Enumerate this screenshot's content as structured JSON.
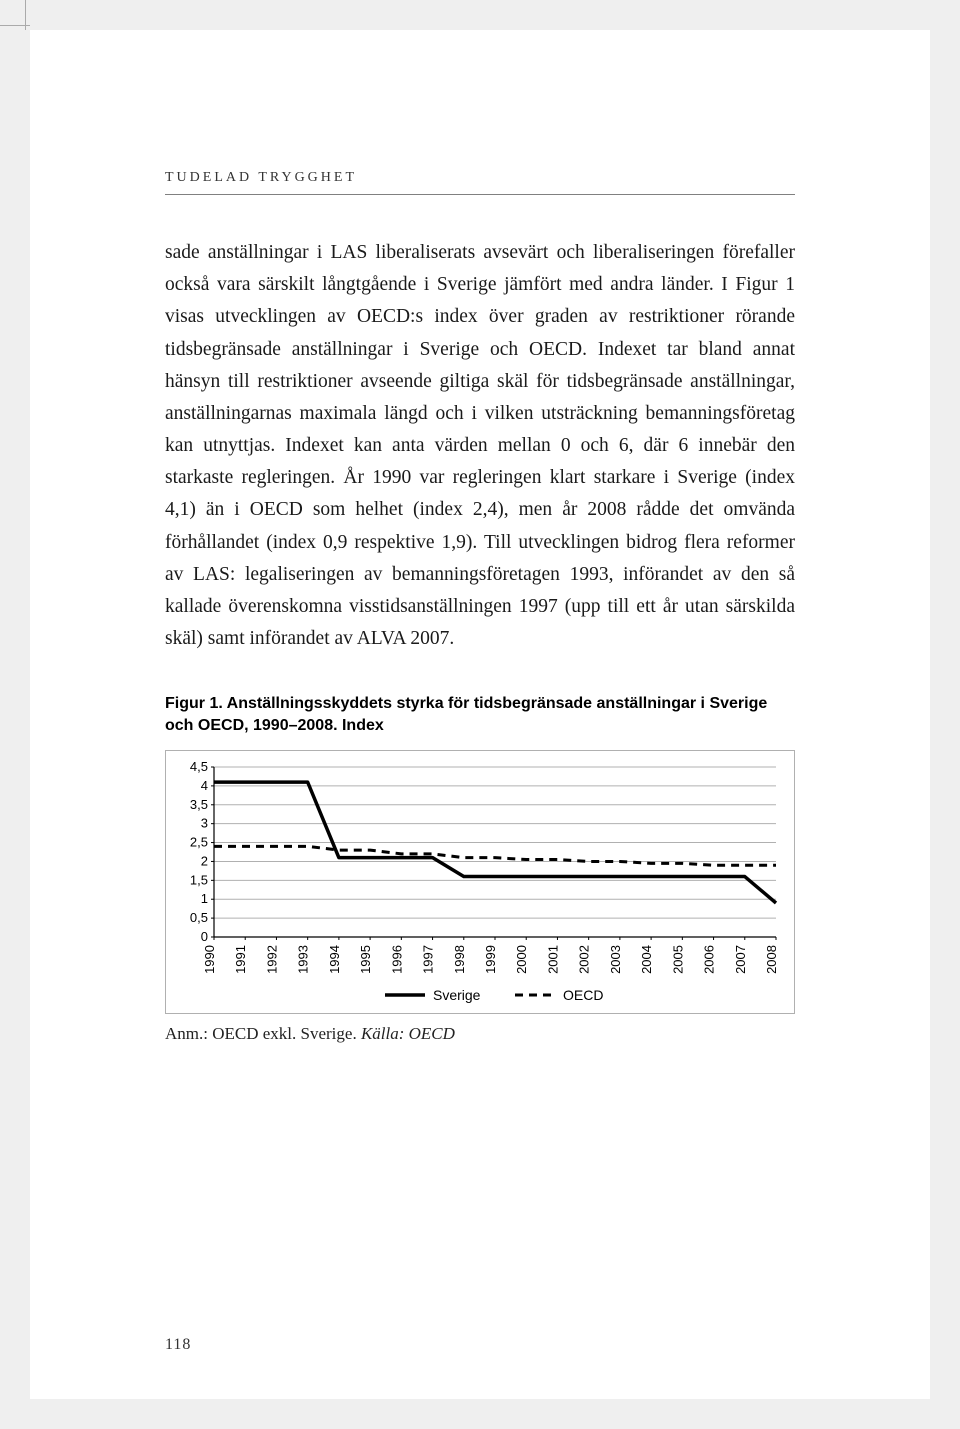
{
  "page": {
    "running_head": "tudelad trygghet",
    "page_number": "118"
  },
  "body_text": "sade anställningar i LAS liberaliserats avsevärt och liberaliseringen förefaller också vara särskilt långtgående i Sverige jämfört med andra länder. I Figur 1 visas utvecklingen av OECD:s index över graden av restriktioner rörande tidsbegränsade anställningar i Sverige och OECD. Indexet tar bland annat hänsyn till restriktioner avseende giltiga skäl för tidsbegränsade anställningar, anställningarnas maximala längd och i vilken utsträckning bemanningsföretag kan utnyttjas. Indexet kan anta värden mellan 0 och 6, där 6 innebär den starkaste regleringen. År 1990 var regleringen klart starkare i Sverige (index 4,1) än i OECD som helhet (index 2,4), men år 2008 rådde det omvända förhållandet (index 0,9 respektive 1,9). Till utvecklingen bidrog flera reformer av LAS: legaliseringen av bemanningsföretagen 1993, införandet av den så kallade överenskomna visstidsanställningen 1997 (upp till ett år utan särskilda skäl) samt införandet av ALVA 2007.",
  "figure": {
    "title": "Figur 1. Anställningsskyddets styrka för tidsbegränsade anställningar i Sverige och OECD, 1990–2008. Index",
    "caption_prefix": "Anm.: OECD exkl. Sverige. ",
    "caption_source": "Källa: OECD",
    "chart": {
      "type": "line",
      "background_color": "#ffffff",
      "grid_color": "#b0b0b0",
      "axis_color": "#000000",
      "font_family": "Arial, Helvetica, sans-serif",
      "tick_fontsize": 13,
      "legend_fontsize": 14,
      "ylim": [
        0,
        4.5
      ],
      "ytick_step": 0.5,
      "yticks": [
        "0",
        "0,5",
        "1",
        "1,5",
        "2",
        "2,5",
        "3",
        "3,5",
        "4",
        "4,5"
      ],
      "xlabels": [
        "1990",
        "1991",
        "1992",
        "1993",
        "1994",
        "1995",
        "1996",
        "1997",
        "1998",
        "1999",
        "2000",
        "2001",
        "2002",
        "2003",
        "2004",
        "2005",
        "2006",
        "2007",
        "2008"
      ],
      "series": [
        {
          "name": "Sverige",
          "color": "#000000",
          "stroke_width": 3.5,
          "dash": "none",
          "values": [
            4.1,
            4.1,
            4.1,
            4.1,
            2.1,
            2.1,
            2.1,
            2.1,
            1.6,
            1.6,
            1.6,
            1.6,
            1.6,
            1.6,
            1.6,
            1.6,
            1.6,
            1.6,
            0.9
          ]
        },
        {
          "name": "OECD",
          "color": "#000000",
          "stroke_width": 3,
          "dash": "8,6",
          "values": [
            2.4,
            2.4,
            2.4,
            2.4,
            2.3,
            2.3,
            2.2,
            2.2,
            2.1,
            2.1,
            2.05,
            2.05,
            2.0,
            2.0,
            1.95,
            1.95,
            1.9,
            1.9,
            1.9
          ]
        }
      ],
      "legend": {
        "items": [
          "Sverige",
          "OECD"
        ]
      }
    }
  }
}
